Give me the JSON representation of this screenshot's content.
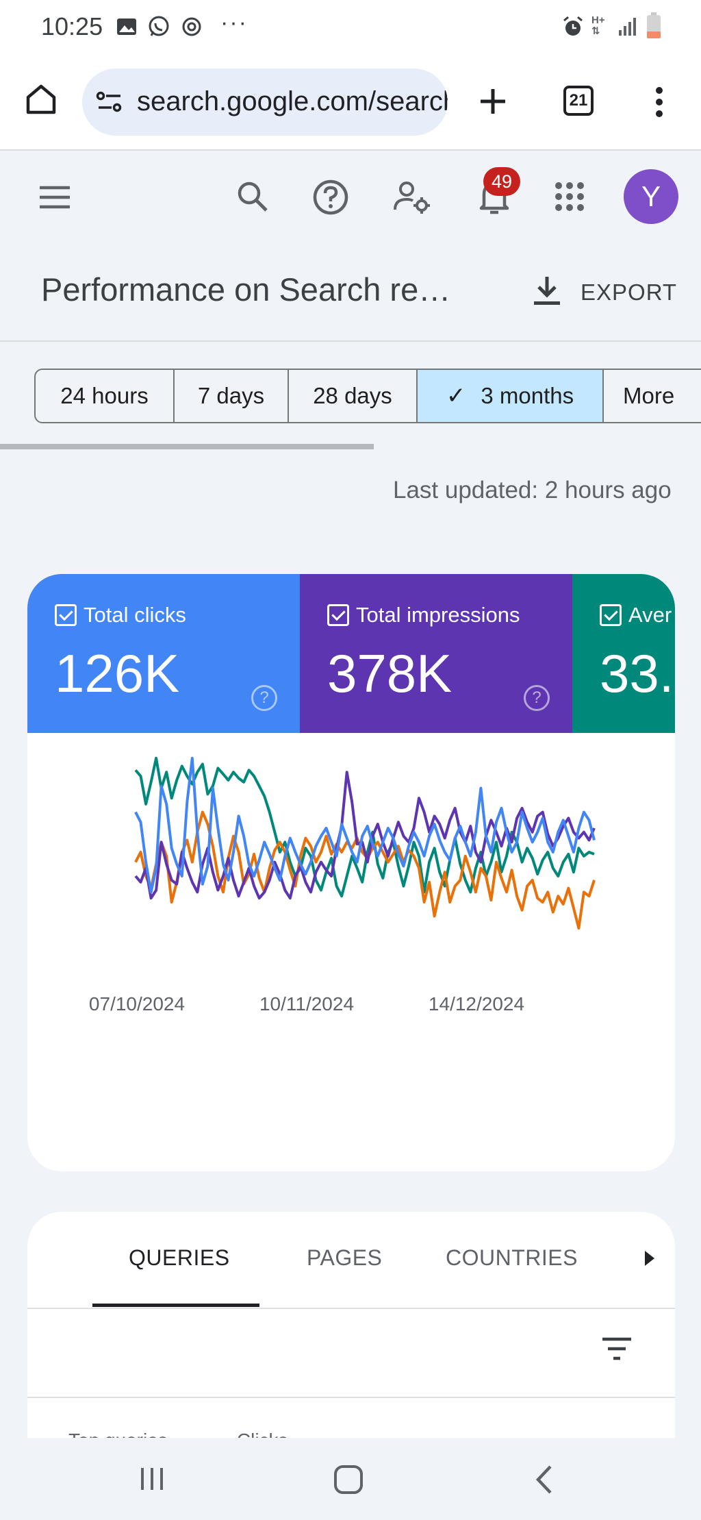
{
  "status_bar": {
    "time": "10:25",
    "left_icons": [
      "gallery-icon",
      "whatsapp-icon",
      "sync-icon"
    ],
    "more": "···",
    "right_icons": [
      "alarm-icon",
      "network-h-icon",
      "signal-icon",
      "battery-icon"
    ],
    "network_label": "H+"
  },
  "browser": {
    "url": "search.google.com/search-console",
    "tab_count": "21"
  },
  "app_bar": {
    "notification_count": "49",
    "avatar_initial": "Y"
  },
  "page": {
    "title": "Performance on Search re…",
    "export_label": "EXPORT"
  },
  "date_range": {
    "chips": [
      "24 hours",
      "7 days",
      "28 days",
      "3 months",
      "More"
    ],
    "selected": "3 months"
  },
  "last_updated": "Last updated: 2 hours ago",
  "metrics": [
    {
      "label": "Total clicks",
      "value": "126K",
      "color": "#4285f4"
    },
    {
      "label": "Total impressions",
      "value": "378K",
      "color": "#5e35b1"
    },
    {
      "label": "Aver",
      "value": "33.",
      "color": "#00897b"
    }
  ],
  "chart_data": {
    "type": "line",
    "x_tick_labels": [
      "07/10/2024",
      "10/11/2024",
      "14/12/2024"
    ],
    "num_points": 90,
    "y_range": [
      0,
      1
    ],
    "grid": false,
    "legend": "none",
    "series": [
      {
        "color": "#00897b",
        "values": [
          0.91,
          0.88,
          0.74,
          0.85,
          0.97,
          0.82,
          0.9,
          0.77,
          0.86,
          0.93,
          0.88,
          0.84,
          0.9,
          0.94,
          0.79,
          0.83,
          0.92,
          0.89,
          0.86,
          0.9,
          0.87,
          0.85,
          0.91,
          0.88,
          0.83,
          0.78,
          0.7,
          0.6,
          0.5,
          0.55,
          0.45,
          0.38,
          0.42,
          0.52,
          0.48,
          0.36,
          0.31,
          0.4,
          0.47,
          0.33,
          0.28,
          0.38,
          0.48,
          0.42,
          0.35,
          0.5,
          0.6,
          0.44,
          0.37,
          0.5,
          0.55,
          0.43,
          0.33,
          0.43,
          0.55,
          0.48,
          0.3,
          0.45,
          0.52,
          0.4,
          0.33,
          0.46,
          0.57,
          0.44,
          0.36,
          0.3,
          0.42,
          0.5,
          0.38,
          0.45,
          0.55,
          0.4,
          0.48,
          0.6,
          0.55,
          0.45,
          0.52,
          0.47,
          0.39,
          0.46,
          0.5,
          0.42,
          0.38,
          0.45,
          0.49,
          0.4,
          0.52,
          0.48,
          0.5,
          0.49
        ]
      },
      {
        "color": "#e8710a",
        "values": [
          0.45,
          0.5,
          0.38,
          0.32,
          0.44,
          0.55,
          0.48,
          0.25,
          0.35,
          0.5,
          0.56,
          0.45,
          0.6,
          0.7,
          0.64,
          0.53,
          0.38,
          0.3,
          0.47,
          0.58,
          0.5,
          0.34,
          0.39,
          0.49,
          0.37,
          0.3,
          0.42,
          0.51,
          0.55,
          0.5,
          0.41,
          0.33,
          0.48,
          0.57,
          0.53,
          0.45,
          0.5,
          0.58,
          0.49,
          0.54,
          0.5,
          0.55,
          0.52,
          0.57,
          0.5,
          0.47,
          0.52,
          0.55,
          0.5,
          0.45,
          0.49,
          0.53,
          0.45,
          0.51,
          0.48,
          0.42,
          0.25,
          0.35,
          0.18,
          0.3,
          0.4,
          0.25,
          0.33,
          0.36,
          0.48,
          0.4,
          0.3,
          0.42,
          0.38,
          0.26,
          0.45,
          0.37,
          0.3,
          0.41,
          0.28,
          0.21,
          0.33,
          0.36,
          0.27,
          0.25,
          0.3,
          0.2,
          0.28,
          0.24,
          0.32,
          0.22,
          0.12,
          0.3,
          0.28,
          0.36
        ]
      },
      {
        "color": "#5e35b1",
        "values": [
          0.38,
          0.35,
          0.42,
          0.27,
          0.31,
          0.55,
          0.44,
          0.36,
          0.34,
          0.5,
          0.42,
          0.35,
          0.3,
          0.44,
          0.52,
          0.4,
          0.31,
          0.38,
          0.47,
          0.36,
          0.28,
          0.35,
          0.42,
          0.33,
          0.27,
          0.3,
          0.36,
          0.45,
          0.39,
          0.31,
          0.27,
          0.38,
          0.43,
          0.35,
          0.3,
          0.4,
          0.45,
          0.41,
          0.38,
          0.52,
          0.63,
          0.9,
          0.75,
          0.54,
          0.55,
          0.45,
          0.58,
          0.64,
          0.55,
          0.48,
          0.57,
          0.65,
          0.58,
          0.55,
          0.62,
          0.77,
          0.7,
          0.6,
          0.68,
          0.64,
          0.57,
          0.66,
          0.72,
          0.6,
          0.55,
          0.63,
          0.5,
          0.45,
          0.58,
          0.66,
          0.6,
          0.53,
          0.62,
          0.55,
          0.67,
          0.72,
          0.65,
          0.6,
          0.68,
          0.7,
          0.59,
          0.53,
          0.57,
          0.63,
          0.67,
          0.6,
          0.57,
          0.6,
          0.56,
          0.62
        ]
      },
      {
        "color": "#4285f4",
        "values": [
          0.7,
          0.65,
          0.45,
          0.3,
          0.42,
          0.83,
          0.74,
          0.52,
          0.44,
          0.38,
          0.75,
          0.97,
          0.6,
          0.34,
          0.43,
          0.82,
          0.62,
          0.44,
          0.36,
          0.5,
          0.68,
          0.58,
          0.44,
          0.38,
          0.46,
          0.55,
          0.49,
          0.42,
          0.36,
          0.48,
          0.57,
          0.5,
          0.44,
          0.39,
          0.45,
          0.53,
          0.58,
          0.62,
          0.55,
          0.48,
          0.64,
          0.57,
          0.5,
          0.45,
          0.58,
          0.63,
          0.54,
          0.48,
          0.55,
          0.62,
          0.57,
          0.49,
          0.43,
          0.53,
          0.6,
          0.55,
          0.48,
          0.58,
          0.64,
          0.56,
          0.5,
          0.46,
          0.57,
          0.63,
          0.55,
          0.48,
          0.6,
          0.82,
          0.58,
          0.5,
          0.65,
          0.72,
          0.6,
          0.5,
          0.55,
          0.7,
          0.62,
          0.55,
          0.6,
          0.67,
          0.55,
          0.5,
          0.6,
          0.66,
          0.58,
          0.5,
          0.62,
          0.7,
          0.66,
          0.56
        ]
      }
    ]
  },
  "table_tabs": {
    "tabs": [
      "QUERIES",
      "PAGES",
      "COUNTRIES"
    ],
    "selected": "QUERIES",
    "row_peek": "Top queries             Clicks"
  }
}
